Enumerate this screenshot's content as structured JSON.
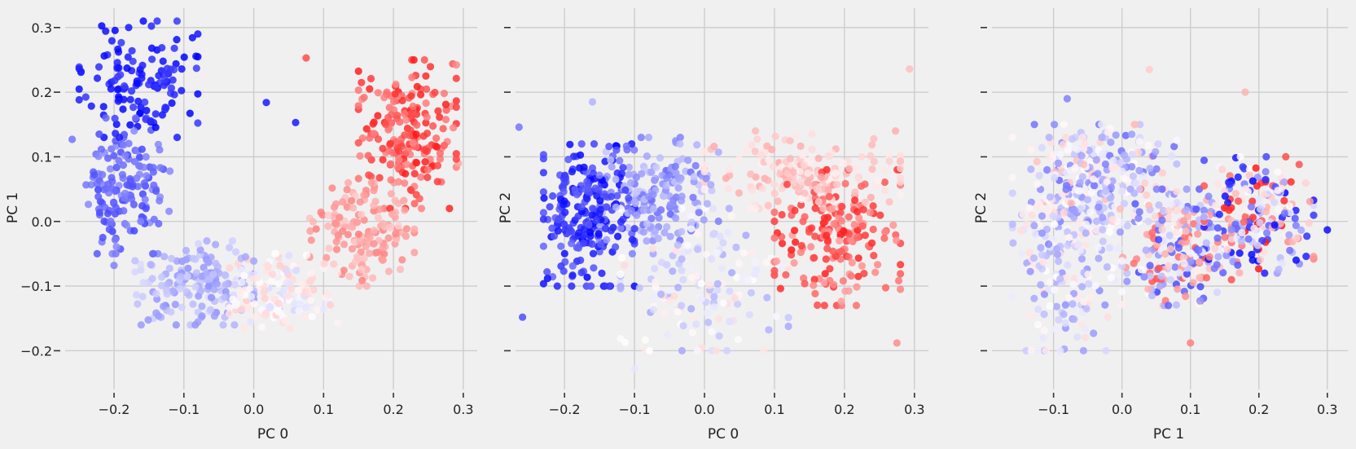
{
  "figure": {
    "background": "#f0f0f0",
    "grid_color": "#cbcbcb",
    "colormap": "bwr",
    "colormap_colors": [
      "#0000ff",
      "#ffffff",
      "#ff0000"
    ],
    "point_alpha": 0.85
  },
  "chart_data": [
    {
      "type": "scatter",
      "title": "",
      "xlabel": "PC 0",
      "ylabel": "PC 1",
      "xlim": [
        -0.27,
        0.32
      ],
      "ylim": [
        -0.26,
        0.33
      ],
      "xticks": [
        -0.2,
        -0.1,
        0.0,
        0.1,
        0.2,
        0.3
      ],
      "xtick_labels": [
        "−0.2",
        "−0.1",
        "0.0",
        "0.1",
        "0.2",
        "0.3"
      ],
      "yticks": [
        -0.2,
        -0.1,
        0.0,
        0.1,
        0.2,
        0.3
      ],
      "ytick_labels": [
        "−0.2",
        "−0.1",
        "0.0",
        "0.1",
        "0.2",
        "0.3"
      ],
      "show_ytick_labels": true,
      "grid": true,
      "color_encodes": "position along the PC 0 / PC 1 arc (blue → white → red)",
      "clusters": [
        {
          "name": "deep-blue upper-left",
          "x_range": [
            -0.25,
            -0.08
          ],
          "y_range": [
            0.13,
            0.31
          ],
          "color_range": [
            -1.0,
            -0.75
          ],
          "count": 130
        },
        {
          "name": "blue left column",
          "x_range": [
            -0.24,
            -0.12
          ],
          "y_range": [
            -0.05,
            0.16
          ],
          "color_range": [
            -0.75,
            -0.45
          ],
          "count": 150
        },
        {
          "name": "light-blue lower arc",
          "x_range": [
            -0.17,
            0.0
          ],
          "y_range": [
            -0.16,
            -0.03
          ],
          "color_range": [
            -0.45,
            -0.15
          ],
          "count": 160
        },
        {
          "name": "white bottom",
          "x_range": [
            -0.04,
            0.12
          ],
          "y_range": [
            -0.17,
            -0.05
          ],
          "color_range": [
            -0.15,
            0.2
          ],
          "count": 150
        },
        {
          "name": "pink rising arc",
          "x_range": [
            0.08,
            0.23
          ],
          "y_range": [
            -0.1,
            0.06
          ],
          "color_range": [
            0.2,
            0.5
          ],
          "count": 150
        },
        {
          "name": "red upper-right",
          "x_range": [
            0.15,
            0.29
          ],
          "y_range": [
            0.02,
            0.25
          ],
          "color_range": [
            0.45,
            0.9
          ],
          "count": 200
        }
      ],
      "outliers": [
        {
          "x": -0.26,
          "y": 0.127,
          "c": -0.55
        },
        {
          "x": 0.075,
          "y": 0.253,
          "c": 0.7
        },
        {
          "x": 0.018,
          "y": 0.184,
          "c": -0.9
        },
        {
          "x": 0.06,
          "y": 0.153,
          "c": -0.9
        },
        {
          "x": 0.293,
          "y": 0.09,
          "c": 0.35
        },
        {
          "x": -0.2,
          "y": -0.068,
          "c": -0.5
        }
      ]
    },
    {
      "type": "scatter",
      "title": "",
      "xlabel": "PC 0",
      "ylabel": "PC 2",
      "xlim": [
        -0.27,
        0.32
      ],
      "ylim": [
        -0.26,
        0.33
      ],
      "xticks": [
        -0.2,
        -0.1,
        0.0,
        0.1,
        0.2,
        0.3
      ],
      "xtick_labels": [
        "−0.2",
        "−0.1",
        "0.0",
        "0.1",
        "0.2",
        "0.3"
      ],
      "yticks": [
        -0.2,
        -0.1,
        0.0,
        0.1,
        0.2,
        0.3
      ],
      "ytick_labels": [
        "",
        "",
        "",
        "",
        "",
        ""
      ],
      "show_ytick_labels": false,
      "grid": true,
      "color_encodes": "same samples as PC 0 vs PC 1",
      "clusters": [
        {
          "name": "blue left block",
          "x_range": [
            -0.23,
            -0.1
          ],
          "y_range": [
            -0.1,
            0.12
          ],
          "color_range": [
            -1.0,
            -0.6
          ],
          "count": 230
        },
        {
          "name": "light-blue center",
          "x_range": [
            -0.15,
            0.02
          ],
          "y_range": [
            -0.05,
            0.13
          ],
          "color_range": [
            -0.6,
            -0.2
          ],
          "count": 170
        },
        {
          "name": "pale lower-center",
          "x_range": [
            -0.12,
            0.12
          ],
          "y_range": [
            -0.2,
            0.02
          ],
          "color_range": [
            -0.35,
            0.15
          ],
          "count": 150
        },
        {
          "name": "pink upper-center",
          "x_range": [
            0.0,
            0.28
          ],
          "y_range": [
            0.02,
            0.14
          ],
          "color_range": [
            0.05,
            0.35
          ],
          "count": 170
        },
        {
          "name": "red right block",
          "x_range": [
            0.1,
            0.28
          ],
          "y_range": [
            -0.13,
            0.08
          ],
          "color_range": [
            0.35,
            0.9
          ],
          "count": 190
        }
      ],
      "outliers": [
        {
          "x": -0.265,
          "y": 0.146,
          "c": -0.55
        },
        {
          "x": -0.26,
          "y": -0.148,
          "c": -0.7
        },
        {
          "x": 0.293,
          "y": 0.236,
          "c": 0.25
        },
        {
          "x": 0.275,
          "y": -0.188,
          "c": 0.45
        },
        {
          "x": -0.1,
          "y": -0.228,
          "c": -0.1
        },
        {
          "x": -0.16,
          "y": 0.185,
          "c": -0.3
        }
      ]
    },
    {
      "type": "scatter",
      "title": "",
      "xlabel": "PC 1",
      "ylabel": "PC 2",
      "xlim": [
        -0.19,
        0.33
      ],
      "ylim": [
        -0.26,
        0.33
      ],
      "xticks": [
        -0.1,
        0.0,
        0.1,
        0.2,
        0.3
      ],
      "xtick_labels": [
        "−0.1",
        "0.0",
        "0.1",
        "0.2",
        "0.3"
      ],
      "yticks": [
        -0.2,
        -0.1,
        0.0,
        0.1,
        0.2,
        0.3
      ],
      "ytick_labels": [
        "",
        "",
        "",
        "",
        "",
        ""
      ],
      "show_ytick_labels": false,
      "grid": true,
      "color_encodes": "same samples as PC 0 vs PC 1",
      "clusters": [
        {
          "name": "pale left band",
          "x_range": [
            -0.16,
            0.0
          ],
          "y_range": [
            -0.2,
            0.13
          ],
          "color_range": [
            -0.45,
            0.15
          ],
          "count": 260
        },
        {
          "name": "light-blue/pink upper-left",
          "x_range": [
            -0.13,
            0.08
          ],
          "y_range": [
            0.0,
            0.15
          ],
          "color_range": [
            -0.6,
            0.3
          ],
          "count": 200
        },
        {
          "name": "mixed center",
          "x_range": [
            0.0,
            0.16
          ],
          "y_range": [
            -0.13,
            0.05
          ],
          "color_range": [
            -0.8,
            0.7
          ],
          "count": 230
        },
        {
          "name": "dark-blue/red right",
          "x_range": [
            0.12,
            0.28
          ],
          "y_range": [
            -0.08,
            0.1
          ],
          "color_range": [
            -1.0,
            0.9
          ],
          "count": 210
        }
      ],
      "outliers": [
        {
          "x": 0.04,
          "y": 0.235,
          "c": 0.2
        },
        {
          "x": 0.18,
          "y": 0.2,
          "c": 0.3
        },
        {
          "x": 0.1,
          "y": -0.188,
          "c": 0.5
        },
        {
          "x": -0.14,
          "y": -0.2,
          "c": -0.2
        },
        {
          "x": 0.3,
          "y": -0.013,
          "c": -0.95
        },
        {
          "x": -0.08,
          "y": 0.19,
          "c": -0.5
        }
      ]
    }
  ]
}
